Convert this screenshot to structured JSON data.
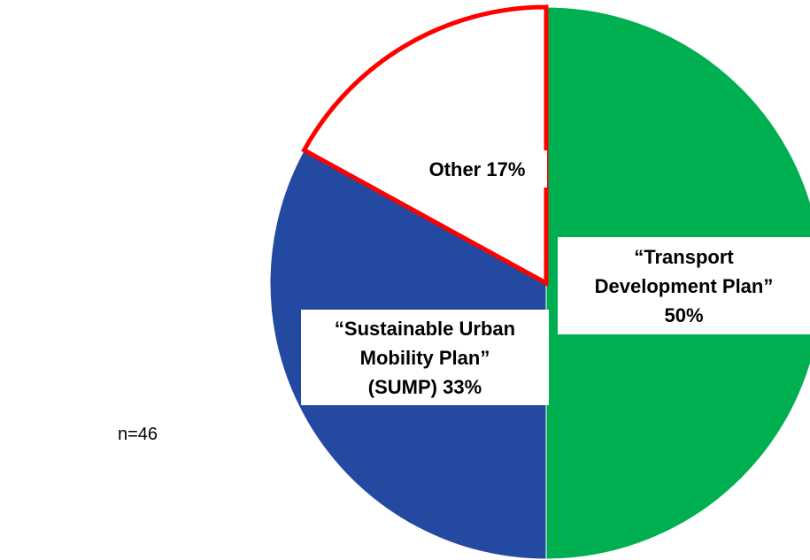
{
  "chart_data": {
    "type": "pie",
    "categories": [
      "“Transport Development Plan”",
      "“Sustainable Urban Mobility Plan” (SUMP)",
      "Other"
    ],
    "values": [
      50,
      33,
      17
    ],
    "value_labels": [
      "50%",
      "33%",
      "17%"
    ],
    "colors": [
      "#00b050",
      "#2349a0",
      "#ffffff"
    ],
    "edge_colors": [
      "#ffffff",
      "#ffffff",
      "#ff0000"
    ],
    "annotation": "n=46"
  }
}
